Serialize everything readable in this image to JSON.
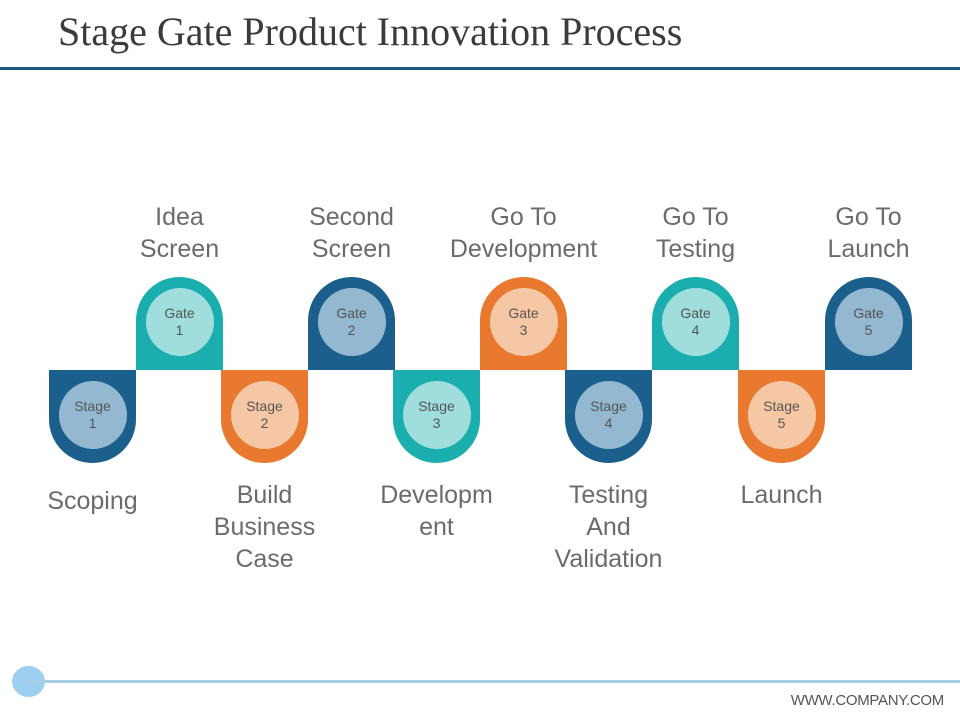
{
  "title": "Stage Gate Product Innovation Process",
  "footer": "WWW.COMPANY.COM",
  "colors": {
    "blue": "#1b5f8c",
    "teal": "#1aaeae",
    "orange": "#e8792f",
    "blue_light": "#94b8cf",
    "teal_light": "#9fdedc",
    "orange_light": "#f5c7a5"
  },
  "steps": [
    {
      "type": "stage",
      "word": "Stage",
      "num": "1",
      "color": "blue",
      "label": [
        "Scoping"
      ]
    },
    {
      "type": "gate",
      "word": "Gate",
      "num": "1",
      "color": "teal",
      "label": [
        "Idea",
        "Screen"
      ]
    },
    {
      "type": "stage",
      "word": "Stage",
      "num": "2",
      "color": "orange",
      "label": [
        "Build",
        "Business",
        "Case"
      ]
    },
    {
      "type": "gate",
      "word": "Gate",
      "num": "2",
      "color": "blue",
      "label": [
        "Second",
        "Screen"
      ]
    },
    {
      "type": "stage",
      "word": "Stage",
      "num": "3",
      "color": "teal",
      "label": [
        "Developm",
        "ent"
      ]
    },
    {
      "type": "gate",
      "word": "Gate",
      "num": "3",
      "color": "orange",
      "label": [
        "Go To",
        "Development"
      ]
    },
    {
      "type": "stage",
      "word": "Stage",
      "num": "4",
      "color": "blue",
      "label": [
        "Testing",
        "And",
        "Validation"
      ]
    },
    {
      "type": "gate",
      "word": "Gate",
      "num": "4",
      "color": "teal",
      "label": [
        "Go To",
        "Testing"
      ]
    },
    {
      "type": "stage",
      "word": "Stage",
      "num": "5",
      "color": "orange",
      "label": [
        "Launch"
      ]
    },
    {
      "type": "gate",
      "word": "Gate",
      "num": "5",
      "color": "blue",
      "label": [
        "Go To",
        "Launch"
      ]
    }
  ]
}
